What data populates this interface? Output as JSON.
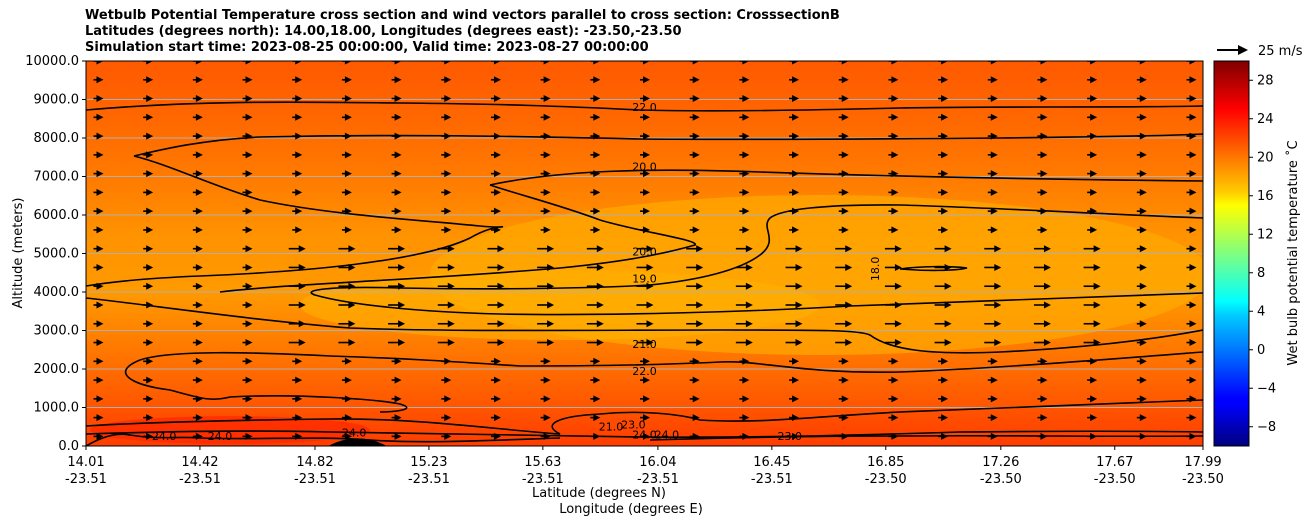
{
  "chart_data": {
    "type": "contour",
    "title_lines": [
      "Wetbulb Potential Temperature cross section and wind vectors parallel to cross section: CrosssectionB",
      "Latitudes (degrees north): 14.00,18.00, Longitudes (degrees east): -23.50,-23.50",
      "Simulation start time: 2023-08-25 00:00:00, Valid time: 2023-08-27 00:00:00"
    ],
    "ylabel": "Altitude (meters)",
    "xlabel_lat": "Latitude (degrees N)",
    "xlabel_lon": "Longitude (degrees E)",
    "ylim": [
      0,
      10000
    ],
    "yticks": [
      "0.0",
      "1000.0",
      "2000.0",
      "3000.0",
      "4000.0",
      "5000.0",
      "6000.0",
      "7000.0",
      "8000.0",
      "9000.0",
      "10000.0"
    ],
    "ytick_values": [
      0,
      1000,
      2000,
      3000,
      4000,
      5000,
      6000,
      7000,
      8000,
      9000,
      10000
    ],
    "grid": "horizontal",
    "xticks": [
      {
        "lat": "14.01",
        "lon": "-23.51",
        "pos": 0
      },
      {
        "lat": "14.42",
        "lon": "-23.51",
        "pos": 0.102
      },
      {
        "lat": "14.82",
        "lon": "-23.51",
        "pos": 0.205
      },
      {
        "lat": "15.23",
        "lon": "-23.51",
        "pos": 0.307
      },
      {
        "lat": "15.63",
        "lon": "-23.51",
        "pos": 0.409
      },
      {
        "lat": "16.04",
        "lon": "-23.51",
        "pos": 0.512
      },
      {
        "lat": "16.45",
        "lon": "-23.51",
        "pos": 0.614
      },
      {
        "lat": "16.85",
        "lon": "-23.50",
        "pos": 0.716
      },
      {
        "lat": "17.26",
        "lon": "-23.50",
        "pos": 0.819
      },
      {
        "lat": "17.67",
        "lon": "-23.50",
        "pos": 0.921
      },
      {
        "lat": "17.99",
        "lon": "-23.50",
        "pos": 1.0
      }
    ],
    "colorbar": {
      "label": "Wet bulb potential temperature ˚C",
      "range": [
        -10,
        30
      ],
      "ticks": [
        "−8",
        "−4",
        "0",
        "4",
        "8",
        "12",
        "16",
        "20",
        "24",
        "28"
      ],
      "tick_values": [
        -8,
        -4,
        0,
        4,
        8,
        12,
        16,
        20,
        24,
        28
      ],
      "colormap": "jet"
    },
    "quiver_key": {
      "label": "25 m/s",
      "speed": 25
    },
    "contour_labels": [
      {
        "text": "22.0",
        "x": 0.5,
        "y": 8700
      },
      {
        "text": "20.0",
        "x": 0.5,
        "y": 7150
      },
      {
        "text": "20.0",
        "x": 0.5,
        "y": 4950
      },
      {
        "text": "19.0",
        "x": 0.5,
        "y": 4250
      },
      {
        "text": "18.0",
        "x": 0.71,
        "y": 4600
      },
      {
        "text": "21.0",
        "x": 0.5,
        "y": 2550
      },
      {
        "text": "22.0",
        "x": 0.5,
        "y": 1850
      },
      {
        "text": "23.0",
        "x": 0.49,
        "y": 450
      },
      {
        "text": "24.0",
        "x": 0.5,
        "y": 200
      },
      {
        "text": "23.0",
        "x": 0.63,
        "y": 150
      },
      {
        "text": "24.0",
        "x": 0.07,
        "y": 150
      },
      {
        "text": "24.0",
        "x": 0.12,
        "y": 150
      },
      {
        "text": "24.0",
        "x": 0.24,
        "y": 250
      },
      {
        "text": "21.0",
        "x": 0.47,
        "y": 400
      },
      {
        "text": "24.0",
        "x": 0.52,
        "y": 200
      }
    ]
  }
}
